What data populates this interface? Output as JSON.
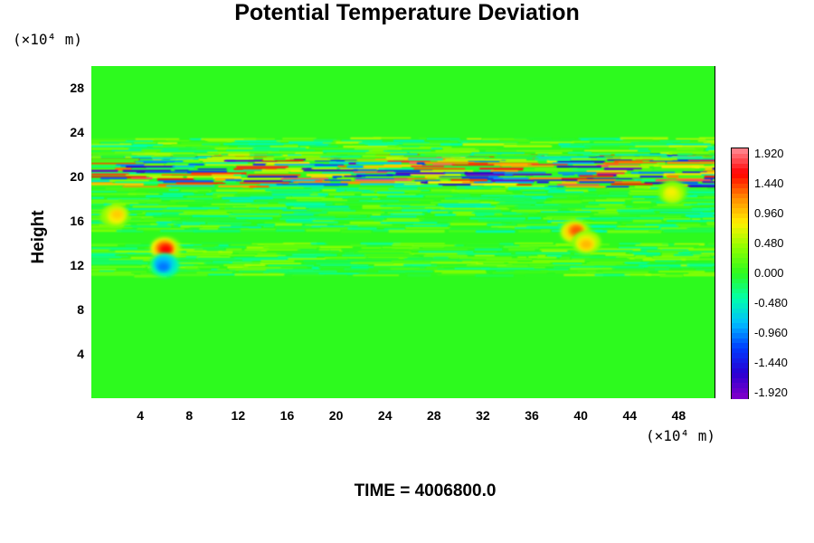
{
  "chart_data": {
    "type": "heatmap",
    "title": "Potential Temperature Deviation",
    "ylabel": "Height",
    "x_unit_label": "(×10⁴ m)",
    "y_unit_label": "(×10⁴ m)",
    "xlim": [
      0,
      51
    ],
    "ylim": [
      0,
      30
    ],
    "x_ticks": [
      4,
      8,
      12,
      16,
      20,
      24,
      28,
      32,
      36,
      40,
      44,
      48
    ],
    "y_ticks": [
      4,
      8,
      12,
      16,
      20,
      24,
      28
    ],
    "colorbar": {
      "min": -2.0,
      "max": 2.0,
      "tick_labels": [
        "1.920",
        "1.440",
        "0.960",
        "0.480",
        "0.000",
        "-0.480",
        "-0.960",
        "-1.440",
        "-1.920"
      ],
      "tick_values": [
        1.92,
        1.44,
        0.96,
        0.48,
        0.0,
        -0.48,
        -0.96,
        -1.44,
        -1.92
      ]
    },
    "background_value": 0.0,
    "features": [
      {
        "kind": "band",
        "y_center": 20.5,
        "y_halfwidth": 1.5,
        "x_range": [
          0,
          51
        ],
        "value_range": [
          -1.9,
          1.9
        ]
      },
      {
        "kind": "band",
        "y_center": 22.5,
        "y_halfwidth": 1.0,
        "x_range": [
          0,
          51
        ],
        "value_range": [
          -0.5,
          0.6
        ]
      },
      {
        "kind": "band",
        "y_center": 17.0,
        "y_halfwidth": 2.0,
        "x_range": [
          0,
          51
        ],
        "value_range": [
          -0.5,
          0.4
        ]
      },
      {
        "kind": "band",
        "y_center": 12.5,
        "y_halfwidth": 1.5,
        "x_range": [
          0,
          51
        ],
        "value_range": [
          -0.4,
          0.5
        ]
      },
      {
        "kind": "blob",
        "x": 6,
        "y": 13.5,
        "value": 1.9
      },
      {
        "kind": "blob",
        "x": 6,
        "y": 12.0,
        "value": -1.2
      },
      {
        "kind": "blob",
        "x": 39.5,
        "y": 15.0,
        "value": 1.6
      },
      {
        "kind": "blob",
        "x": 40.5,
        "y": 14.0,
        "value": 1.2
      },
      {
        "kind": "blob",
        "x": 2.0,
        "y": 16.5,
        "value": 1.1
      },
      {
        "kind": "blob",
        "x": 47.5,
        "y": 18.5,
        "value": 0.9
      }
    ]
  },
  "footer": {
    "time_label": "TIME = 4006800.0"
  }
}
